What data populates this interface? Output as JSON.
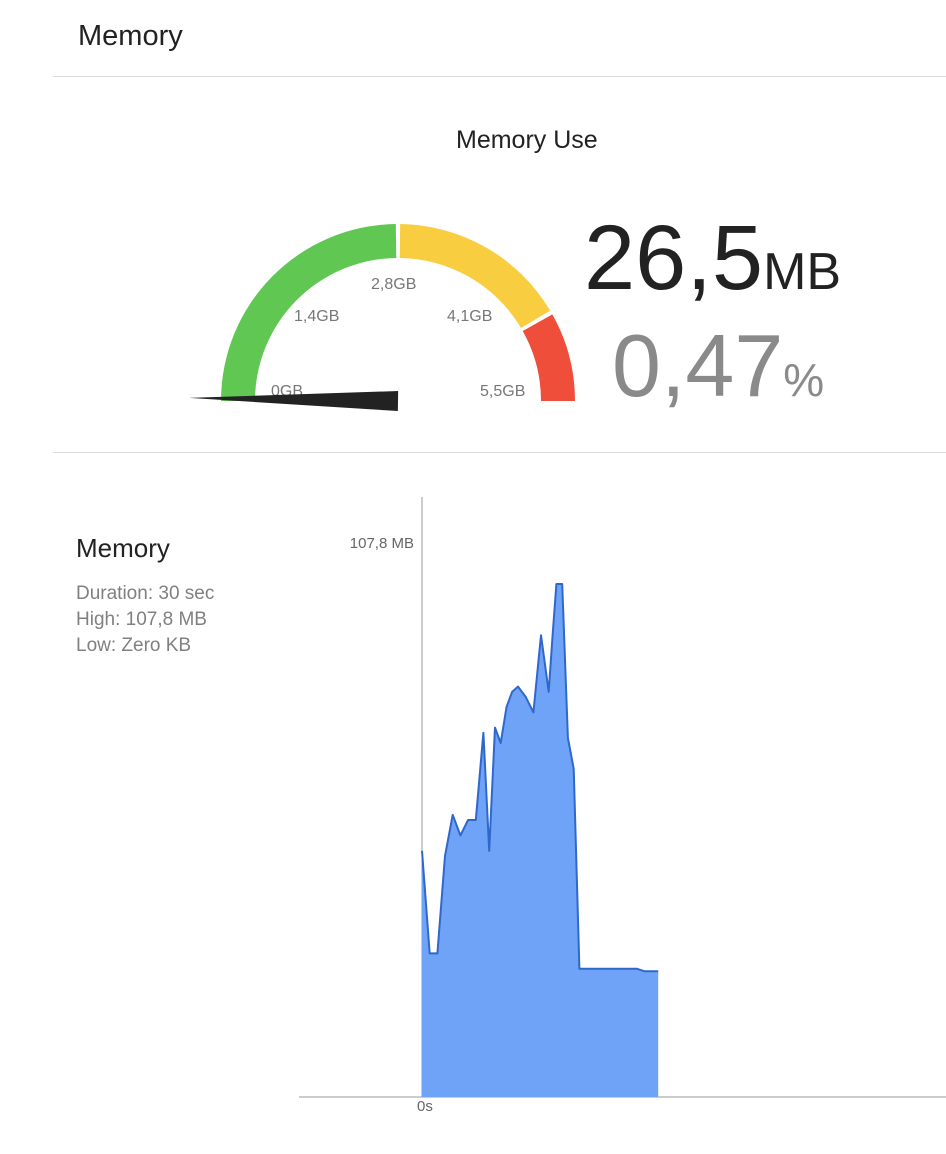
{
  "header": {
    "title": "Memory"
  },
  "gauge": {
    "title": "Memory Use",
    "value": "26,5",
    "value_unit": "MB",
    "percent": "0,47",
    "percent_unit": "%",
    "needle_fraction": 0.0047,
    "labels": [
      "0GB",
      "1,4GB",
      "2,8GB",
      "4,1GB",
      "5,5GB"
    ],
    "colors": {
      "low": "#5fc752",
      "mid": "#f8cd40",
      "high": "#ef4e3a",
      "needle": "#222222"
    }
  },
  "memory_chart": {
    "title": "Memory",
    "duration": "Duration: 30 sec",
    "high": "High: 107,8 MB",
    "low": "Low: Zero KB"
  },
  "chart_data": {
    "type": "area",
    "title": "Memory",
    "xlabel": "",
    "ylabel": "",
    "y_tick_label": "107,8 MB",
    "x_tick_label": "0s",
    "ylim": [
      0,
      107.8
    ],
    "grid": false,
    "fill_color": "#6fa3f7",
    "line_color": "#2f68cc",
    "series": [
      {
        "x": [
          0,
          0.8,
          1.6,
          2.4,
          3.2,
          4.0,
          4.8,
          5.6,
          6.4,
          7.0,
          7.6,
          8.2,
          8.8,
          9.4,
          10.0,
          10.8,
          11.6,
          12.4,
          13.2,
          13.6,
          14.0,
          14.6,
          15.2,
          15.8,
          16.4,
          17.0,
          17.6,
          18.2,
          18.8,
          19.6,
          20.2,
          21.0,
          21.6,
          22.4,
          23.2,
          24.0,
          24.6
        ],
        "values": [
          48,
          28,
          28,
          47,
          55,
          51,
          54,
          54,
          71,
          48,
          72,
          69,
          76,
          79,
          80,
          78,
          75,
          90,
          79,
          90,
          100,
          100,
          70,
          64,
          25,
          25,
          25,
          25,
          25,
          25,
          25,
          25,
          25,
          25,
          24.5,
          24.5,
          24.5
        ]
      }
    ]
  }
}
